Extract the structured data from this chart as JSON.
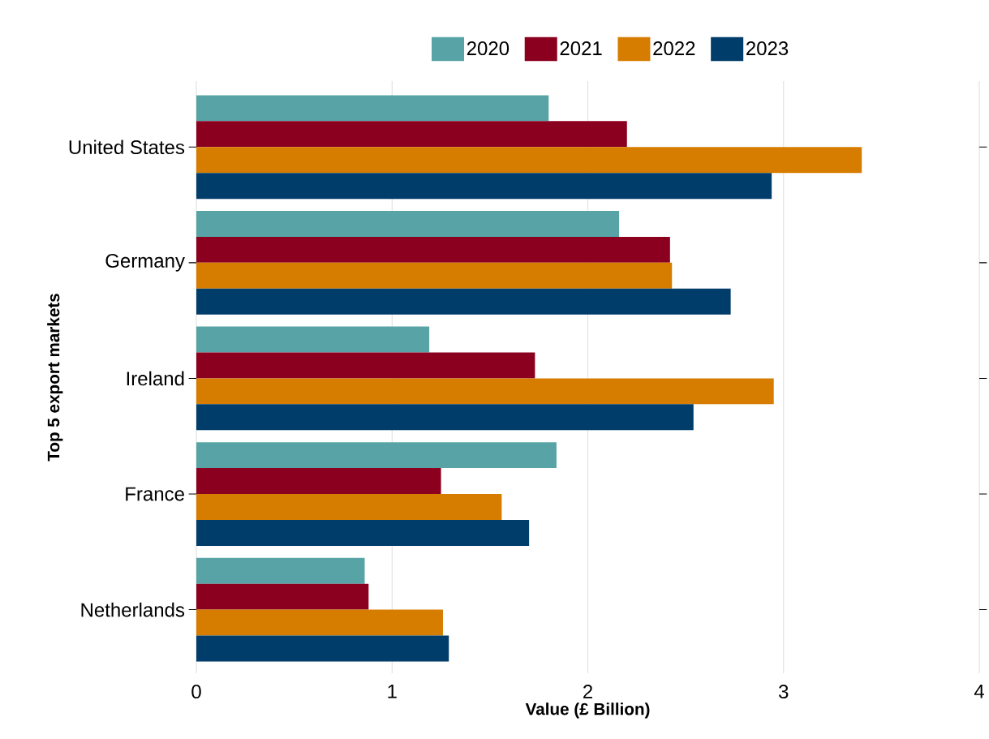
{
  "chart_data": {
    "type": "bar",
    "orientation": "horizontal",
    "xlabel": "Value (£ Billion)",
    "ylabel": "Top 5 export markets",
    "categories": [
      "United States",
      "Germany",
      "Ireland",
      "France",
      "Netherlands"
    ],
    "series": [
      {
        "name": "2020",
        "color": "#57a3a5",
        "values": [
          1.8,
          2.16,
          1.19,
          1.84,
          0.86
        ]
      },
      {
        "name": "2021",
        "color": "#8a001e",
        "values": [
          2.2,
          2.42,
          1.73,
          1.25,
          0.88
        ]
      },
      {
        "name": "2022",
        "color": "#d67d00",
        "values": [
          3.4,
          2.43,
          2.95,
          1.56,
          1.26
        ]
      },
      {
        "name": "2023",
        "color": "#003d6b",
        "values": [
          2.94,
          2.73,
          2.54,
          1.7,
          1.29
        ]
      }
    ],
    "xlim": [
      0,
      4
    ],
    "xticks": [
      0,
      1,
      2,
      3,
      4
    ],
    "grid": "x",
    "legend": "top"
  }
}
